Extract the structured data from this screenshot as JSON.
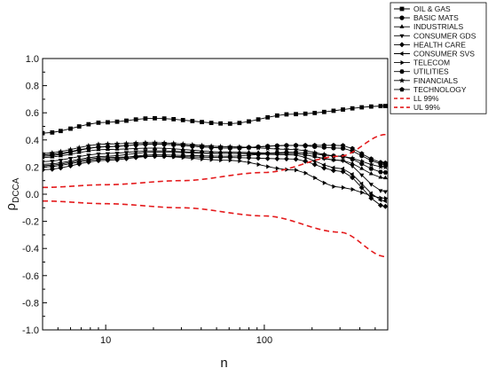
{
  "chart_data": {
    "type": "line",
    "title": "",
    "xlabel": "n",
    "ylabel": {
      "main": "ρ",
      "subscript": "DCCA"
    },
    "xscale": "log",
    "xlim": [
      4,
      600
    ],
    "ylim": [
      -1.0,
      1.0
    ],
    "x_ticks": [
      10,
      100
    ],
    "x_tick_labels": [
      "10",
      "100"
    ],
    "y_ticks": [
      -1.0,
      -0.8,
      -0.6,
      -0.4,
      -0.2,
      0.0,
      0.2,
      0.4,
      0.6,
      0.8,
      1.0
    ],
    "y_tick_labels": [
      "-1.0",
      "-0.8",
      "-0.6",
      "-0.4",
      "-0.2",
      "0.0",
      "0.2",
      "0.4",
      "0.6",
      "0.8",
      "1.0"
    ],
    "grid": false,
    "legend_position": "top-right",
    "x": [
      4,
      4.6,
      5.2,
      6,
      6.8,
      7.8,
      9,
      10.3,
      11.8,
      13.5,
      15.5,
      17.8,
      20.4,
      23.4,
      26.8,
      30.7,
      35.2,
      40.4,
      46.3,
      53,
      60.8,
      69.7,
      79.9,
      91.6,
      105,
      120.4,
      138,
      158.2,
      181.4,
      207.9,
      238.3,
      273.2,
      313.2,
      359,
      411.6,
      471.8,
      540.9,
      580
    ],
    "series": [
      {
        "name": "OIL & GAS",
        "marker": "square",
        "anchors": [
          [
            4,
            0.45
          ],
          [
            10,
            0.53
          ],
          [
            20,
            0.56
          ],
          [
            60,
            0.52
          ],
          [
            150,
            0.59
          ],
          [
            580,
            0.65
          ]
        ]
      },
      {
        "name": "BASIC MATS",
        "marker": "circle",
        "anchors": [
          [
            4,
            0.29
          ],
          [
            10,
            0.35
          ],
          [
            20,
            0.37
          ],
          [
            60,
            0.34
          ],
          [
            150,
            0.36
          ],
          [
            300,
            0.34
          ],
          [
            580,
            0.22
          ]
        ]
      },
      {
        "name": "INDUSTRIALS",
        "marker": "triangle-up",
        "anchors": [
          [
            4,
            0.27
          ],
          [
            10,
            0.33
          ],
          [
            20,
            0.34
          ],
          [
            60,
            0.31
          ],
          [
            150,
            0.3
          ],
          [
            300,
            0.25
          ],
          [
            580,
            0.12
          ]
        ]
      },
      {
        "name": "CONSUMER GDS",
        "marker": "triangle-down",
        "anchors": [
          [
            4,
            0.24
          ],
          [
            10,
            0.3
          ],
          [
            20,
            0.32
          ],
          [
            60,
            0.3
          ],
          [
            150,
            0.3
          ],
          [
            300,
            0.25
          ],
          [
            580,
            0.02
          ]
        ]
      },
      {
        "name": "HEALTH CARE",
        "marker": "diamond",
        "anchors": [
          [
            4,
            0.18
          ],
          [
            10,
            0.25
          ],
          [
            20,
            0.28
          ],
          [
            60,
            0.27
          ],
          [
            150,
            0.26
          ],
          [
            300,
            0.17
          ],
          [
            580,
            -0.09
          ]
        ]
      },
      {
        "name": "CONSUMER SVS",
        "marker": "triangle-left",
        "anchors": [
          [
            4,
            0.22
          ],
          [
            10,
            0.28
          ],
          [
            20,
            0.31
          ],
          [
            60,
            0.3
          ],
          [
            150,
            0.29
          ],
          [
            300,
            0.19
          ],
          [
            580,
            -0.05
          ]
        ]
      },
      {
        "name": "TELECOM",
        "marker": "triangle-right",
        "anchors": [
          [
            4,
            0.21
          ],
          [
            10,
            0.27
          ],
          [
            20,
            0.28
          ],
          [
            60,
            0.25
          ],
          [
            150,
            0.18
          ],
          [
            300,
            0.05
          ],
          [
            580,
            -0.03
          ]
        ]
      },
      {
        "name": "UTILITIES",
        "marker": "hexagon",
        "anchors": [
          [
            4,
            0.2
          ],
          [
            10,
            0.26
          ],
          [
            20,
            0.29
          ],
          [
            60,
            0.28
          ],
          [
            150,
            0.31
          ],
          [
            300,
            0.28
          ],
          [
            580,
            0.16
          ]
        ]
      },
      {
        "name": "FINANCIALS",
        "marker": "star",
        "anchors": [
          [
            4,
            0.3
          ],
          [
            10,
            0.37
          ],
          [
            20,
            0.38
          ],
          [
            60,
            0.35
          ],
          [
            150,
            0.33
          ],
          [
            300,
            0.28
          ],
          [
            580,
            0.2
          ]
        ]
      },
      {
        "name": "TECHNOLOGY",
        "marker": "pentagon",
        "anchors": [
          [
            4,
            0.28
          ],
          [
            10,
            0.35
          ],
          [
            20,
            0.37
          ],
          [
            60,
            0.34
          ],
          [
            150,
            0.36
          ],
          [
            300,
            0.36
          ],
          [
            580,
            0.23
          ]
        ]
      },
      {
        "name": "LL 99%",
        "style": "dashed",
        "color": "#e41a1c",
        "anchors": [
          [
            4,
            0.05
          ],
          [
            10,
            0.07
          ],
          [
            30,
            0.1
          ],
          [
            100,
            0.16
          ],
          [
            300,
            0.28
          ],
          [
            580,
            0.44
          ]
        ]
      },
      {
        "name": "UL 99%",
        "style": "dashed",
        "color": "#e41a1c",
        "anchors": [
          [
            4,
            -0.05
          ],
          [
            10,
            -0.07
          ],
          [
            30,
            -0.1
          ],
          [
            100,
            -0.16
          ],
          [
            300,
            -0.28
          ],
          [
            580,
            -0.46
          ]
        ]
      }
    ]
  }
}
